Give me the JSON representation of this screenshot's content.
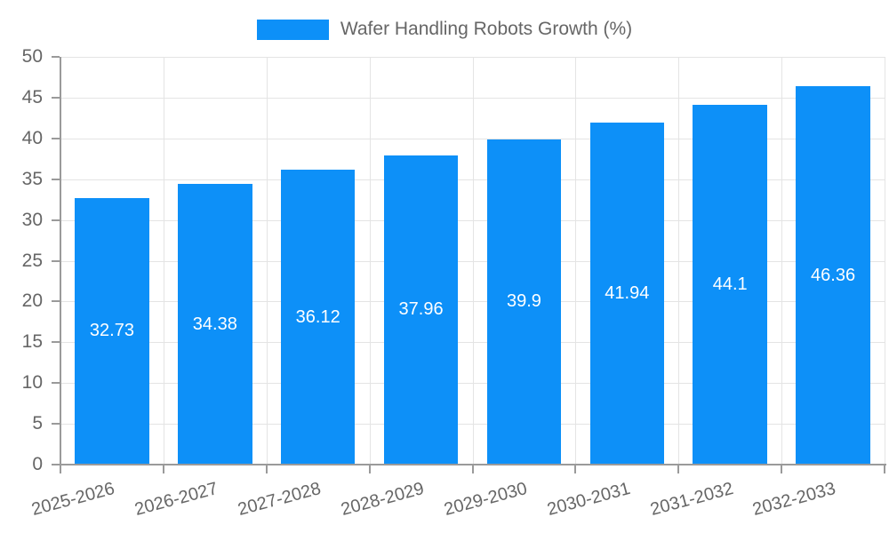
{
  "legend": {
    "label": "Wafer Handling Robots Growth (%)"
  },
  "colors": {
    "bar": "#0d90f8",
    "axis_label": "#666666",
    "grid": "#e4e4e4",
    "axis_line": "#9a9a9a",
    "value_label": "#ffffff",
    "background": "#ffffff"
  },
  "chart_data": {
    "type": "bar",
    "title": "",
    "xlabel": "",
    "ylabel": "",
    "categories": [
      "2025-2026",
      "2026-2027",
      "2027-2028",
      "2028-2029",
      "2029-2030",
      "2030-2031",
      "2031-2032",
      "2032-2033"
    ],
    "values": [
      32.73,
      34.38,
      36.12,
      37.96,
      39.9,
      41.94,
      44.1,
      46.36
    ],
    "series_name": "Wafer Handling Robots Growth (%)",
    "ylim": [
      0,
      50
    ],
    "y_ticks": [
      0,
      5,
      10,
      15,
      20,
      25,
      30,
      35,
      40,
      45,
      50
    ],
    "grid": true,
    "legend_position": "top-center",
    "value_labels": "inside-center",
    "x_label_rotation_deg": -15
  }
}
